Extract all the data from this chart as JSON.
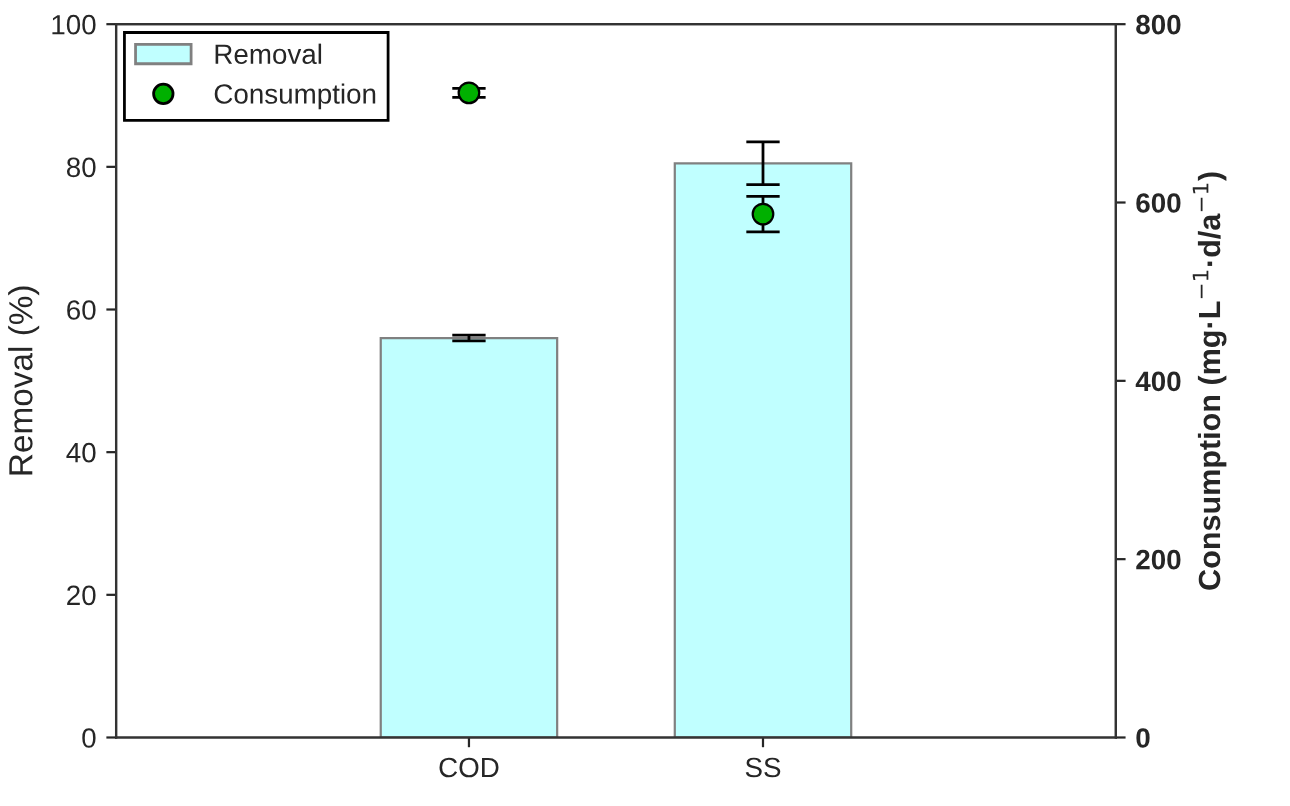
{
  "chart_data": {
    "type": "bar",
    "ylabel": "Removal (%)",
    "y2label": "Consumption (mg·L$^{−1}$·d/a$^{−1}$)",
    "categories": [
      "COD",
      "SS"
    ],
    "series": [
      {
        "name": "Removal",
        "color": "#c0ffff",
        "values": [
          56,
          80.5
        ],
        "errors": [
          0.4,
          3
        ]
      },
      {
        "name": "Consumption",
        "type": "scatter",
        "axis": "y2",
        "color": "#00b000",
        "values": [
          723,
          587
        ],
        "errors": [
          5,
          20
        ]
      }
    ],
    "ylim": [
      0,
      100
    ],
    "yticks": [
      0,
      20,
      40,
      60,
      80,
      100
    ],
    "y2lim": [
      0,
      800
    ],
    "y2ticks": [
      0,
      200,
      400,
      600,
      800
    ],
    "legend": "top left",
    "grid": false,
    "marker": "circle"
  }
}
